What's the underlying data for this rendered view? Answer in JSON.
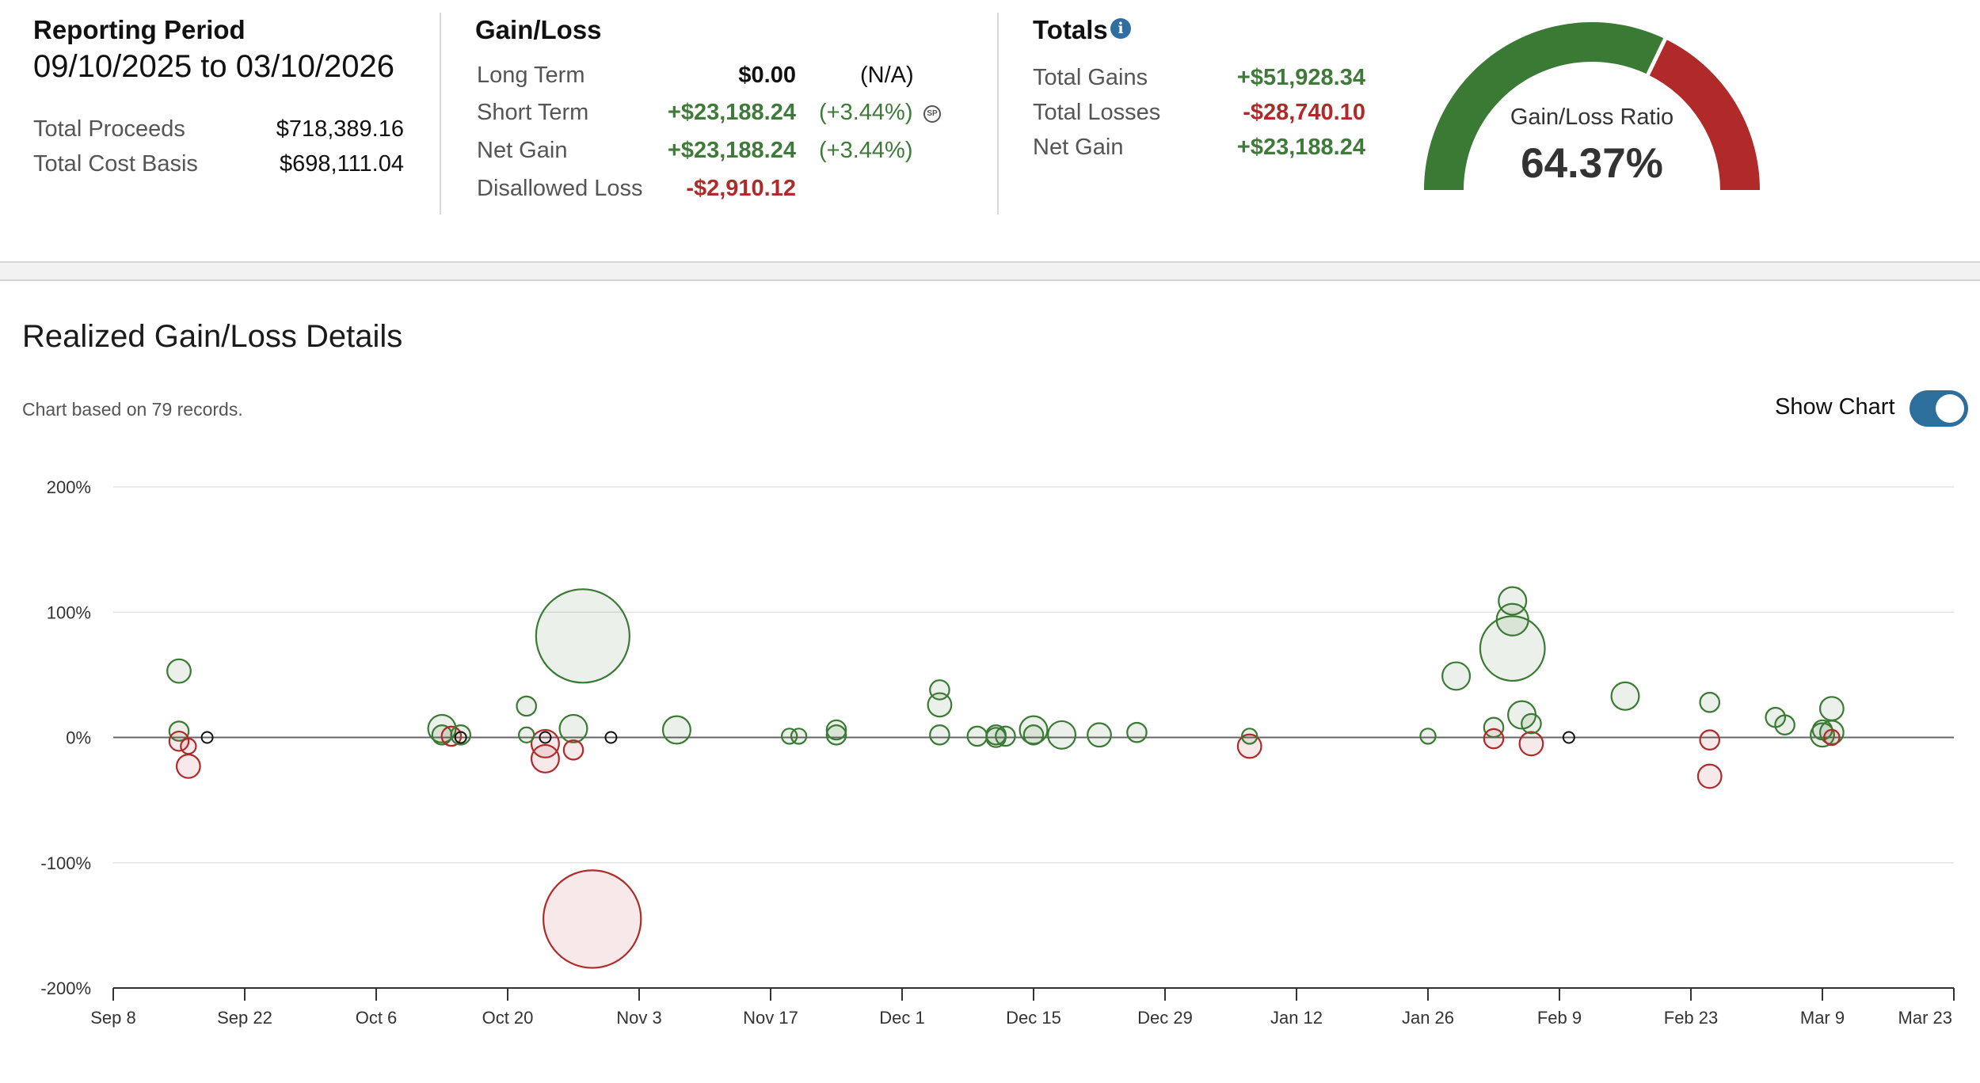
{
  "reporting_period": {
    "title": "Reporting Period",
    "range": "09/10/2025 to 03/10/2026",
    "rows": [
      {
        "label": "Total Proceeds",
        "value": "$718,389.16"
      },
      {
        "label": "Total Cost Basis",
        "value": "$698,111.04"
      }
    ]
  },
  "gain_loss": {
    "title": "Gain/Loss",
    "rows": [
      {
        "label": "Long Term",
        "value": "$0.00",
        "pct": "(N/A)"
      },
      {
        "label": "Short Term",
        "value": "+$23,188.24",
        "pct": "(+3.44%)"
      },
      {
        "label": "Net Gain",
        "value": "+$23,188.24",
        "pct": "(+3.44%)"
      },
      {
        "label": "Disallowed Loss",
        "value": "-$2,910.12",
        "pct": ""
      }
    ],
    "sp_icon_text": "SP"
  },
  "totals": {
    "title": "Totals",
    "info_icon": "info-icon",
    "rows": [
      {
        "label": "Total Gains",
        "value": "+$51,928.34"
      },
      {
        "label": "Total Losses",
        "value": "-$28,740.10"
      },
      {
        "label": "Net Gain",
        "value": "+$23,188.24"
      }
    ]
  },
  "gauge": {
    "label": "Gain/Loss Ratio",
    "value_text": "64.37%",
    "ratio": 0.6437,
    "gain_color": "#3a7a34",
    "loss_color": "#b02a2a"
  },
  "details": {
    "title": "Realized Gain/Loss Details",
    "records_note": "Chart based on 79 records.",
    "toggle_label": "Show Chart",
    "toggle_on": true,
    "toggle_color": "#2c6e9c"
  },
  "chart_data": {
    "type": "scatter",
    "title": "",
    "xlabel": "",
    "ylabel": "",
    "y_ticks": [
      "200%",
      "100%",
      "0%",
      "-100%",
      "-200%"
    ],
    "x_ticks": [
      "Sep 8",
      "Sep 22",
      "Oct 6",
      "Oct 20",
      "Nov 3",
      "Nov 17",
      "Dec 1",
      "Dec 15",
      "Dec 29",
      "Jan 12",
      "Jan 26",
      "Feb 9",
      "Feb 23",
      "Mar 9",
      "Mar 23"
    ],
    "xlim": [
      "2025-09-08",
      "2026-03-23"
    ],
    "ylim": [
      -200,
      200
    ],
    "grid": true,
    "colors": {
      "gain": "#3a7a34",
      "loss": "#b02a2a",
      "neutral": "#111111"
    },
    "points": [
      {
        "date": "2025-09-15",
        "pct": 53,
        "size": 3,
        "kind": "gain"
      },
      {
        "date": "2025-09-15",
        "pct": 5,
        "size": 2,
        "kind": "gain"
      },
      {
        "date": "2025-09-15",
        "pct": -3,
        "size": 2,
        "kind": "loss"
      },
      {
        "date": "2025-09-16",
        "pct": -7,
        "size": 1,
        "kind": "loss"
      },
      {
        "date": "2025-09-16",
        "pct": -23,
        "size": 3,
        "kind": "loss"
      },
      {
        "date": "2025-09-18",
        "pct": 0,
        "size": 1,
        "kind": "neutral"
      },
      {
        "date": "2025-10-13",
        "pct": 7,
        "size": 4,
        "kind": "gain"
      },
      {
        "date": "2025-10-13",
        "pct": 2,
        "size": 2,
        "kind": "gain"
      },
      {
        "date": "2025-10-14",
        "pct": 1,
        "size": 2,
        "kind": "loss"
      },
      {
        "date": "2025-10-15",
        "pct": 2,
        "size": 2,
        "kind": "gain"
      },
      {
        "date": "2025-10-15",
        "pct": 0,
        "size": 1,
        "kind": "neutral"
      },
      {
        "date": "2025-10-22",
        "pct": 25,
        "size": 2,
        "kind": "gain"
      },
      {
        "date": "2025-10-22",
        "pct": 2,
        "size": 1,
        "kind": "gain"
      },
      {
        "date": "2025-10-24",
        "pct": -5,
        "size": 4,
        "kind": "loss"
      },
      {
        "date": "2025-10-24",
        "pct": 0,
        "size": 1,
        "kind": "neutral"
      },
      {
        "date": "2025-10-24",
        "pct": -17,
        "size": 4,
        "kind": "loss"
      },
      {
        "date": "2025-10-27",
        "pct": 7,
        "size": 4,
        "kind": "gain"
      },
      {
        "date": "2025-10-27",
        "pct": -10,
        "size": 2,
        "kind": "loss"
      },
      {
        "date": "2025-10-28",
        "pct": 81,
        "size": 20,
        "kind": "gain"
      },
      {
        "date": "2025-10-29",
        "pct": -145,
        "size": 21,
        "kind": "loss"
      },
      {
        "date": "2025-10-31",
        "pct": 0,
        "size": 1,
        "kind": "neutral"
      },
      {
        "date": "2025-11-07",
        "pct": 6,
        "size": 4,
        "kind": "gain"
      },
      {
        "date": "2025-11-19",
        "pct": 1,
        "size": 1,
        "kind": "gain"
      },
      {
        "date": "2025-11-20",
        "pct": 1,
        "size": 1,
        "kind": "gain"
      },
      {
        "date": "2025-11-24",
        "pct": 6,
        "size": 2,
        "kind": "gain"
      },
      {
        "date": "2025-11-24",
        "pct": 2,
        "size": 2,
        "kind": "gain"
      },
      {
        "date": "2025-12-05",
        "pct": 38,
        "size": 2,
        "kind": "gain"
      },
      {
        "date": "2025-12-05",
        "pct": 26,
        "size": 3,
        "kind": "gain"
      },
      {
        "date": "2025-12-05",
        "pct": 2,
        "size": 2,
        "kind": "gain"
      },
      {
        "date": "2025-12-09",
        "pct": 1,
        "size": 2,
        "kind": "gain"
      },
      {
        "date": "2025-12-11",
        "pct": 2,
        "size": 2,
        "kind": "gain"
      },
      {
        "date": "2025-12-11",
        "pct": 0,
        "size": 2,
        "kind": "gain"
      },
      {
        "date": "2025-12-12",
        "pct": 1,
        "size": 2,
        "kind": "gain"
      },
      {
        "date": "2025-12-15",
        "pct": 6,
        "size": 4,
        "kind": "gain"
      },
      {
        "date": "2025-12-15",
        "pct": 2,
        "size": 2,
        "kind": "gain"
      },
      {
        "date": "2025-12-18",
        "pct": 2,
        "size": 4,
        "kind": "gain"
      },
      {
        "date": "2025-12-22",
        "pct": 2,
        "size": 3,
        "kind": "gain"
      },
      {
        "date": "2025-12-26",
        "pct": 4,
        "size": 2,
        "kind": "gain"
      },
      {
        "date": "2026-01-07",
        "pct": 1,
        "size": 1,
        "kind": "gain"
      },
      {
        "date": "2026-01-07",
        "pct": -7,
        "size": 3,
        "kind": "loss"
      },
      {
        "date": "2026-01-26",
        "pct": 1,
        "size": 1,
        "kind": "gain"
      },
      {
        "date": "2026-01-29",
        "pct": 49,
        "size": 4,
        "kind": "gain"
      },
      {
        "date": "2026-02-02",
        "pct": 8,
        "size": 2,
        "kind": "gain"
      },
      {
        "date": "2026-02-02",
        "pct": -1,
        "size": 2,
        "kind": "loss"
      },
      {
        "date": "2026-02-04",
        "pct": 109,
        "size": 4,
        "kind": "gain"
      },
      {
        "date": "2026-02-04",
        "pct": 94,
        "size": 5,
        "kind": "gain"
      },
      {
        "date": "2026-02-04",
        "pct": 71,
        "size": 13,
        "kind": "gain"
      },
      {
        "date": "2026-02-05",
        "pct": 18,
        "size": 4,
        "kind": "gain"
      },
      {
        "date": "2026-02-06",
        "pct": 11,
        "size": 2,
        "kind": "gain"
      },
      {
        "date": "2026-02-06",
        "pct": -5,
        "size": 3,
        "kind": "loss"
      },
      {
        "date": "2026-02-10",
        "pct": 0,
        "size": 1,
        "kind": "neutral"
      },
      {
        "date": "2026-02-16",
        "pct": 33,
        "size": 4,
        "kind": "gain"
      },
      {
        "date": "2026-02-25",
        "pct": 28,
        "size": 2,
        "kind": "gain"
      },
      {
        "date": "2026-02-25",
        "pct": -2,
        "size": 2,
        "kind": "loss"
      },
      {
        "date": "2026-02-25",
        "pct": -31,
        "size": 3,
        "kind": "loss"
      },
      {
        "date": "2026-03-04",
        "pct": 16,
        "size": 2,
        "kind": "gain"
      },
      {
        "date": "2026-03-05",
        "pct": 10,
        "size": 2,
        "kind": "gain"
      },
      {
        "date": "2026-03-09",
        "pct": 6,
        "size": 2,
        "kind": "gain"
      },
      {
        "date": "2026-03-09",
        "pct": 2,
        "size": 3,
        "kind": "gain"
      },
      {
        "date": "2026-03-10",
        "pct": 23,
        "size": 3,
        "kind": "gain"
      },
      {
        "date": "2026-03-10",
        "pct": 4,
        "size": 3,
        "kind": "gain"
      },
      {
        "date": "2026-03-10",
        "pct": 0,
        "size": 1,
        "kind": "loss"
      }
    ]
  }
}
